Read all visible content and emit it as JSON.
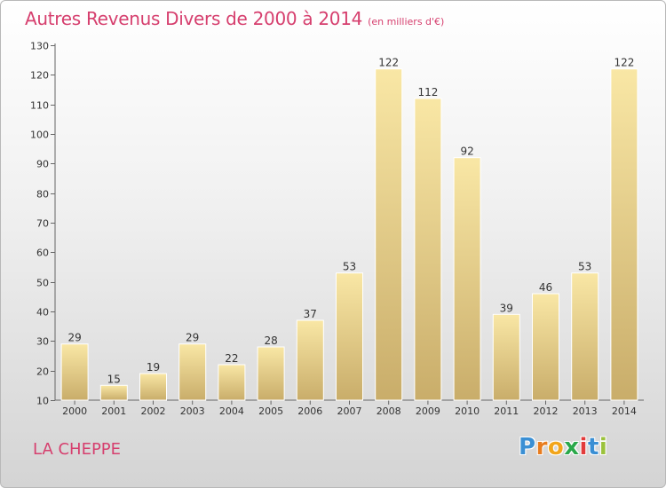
{
  "title": "Autres Revenus Divers de 2000 à 2014",
  "subtitle": "(en milliers d'€)",
  "place_name": "LA CHEPPE",
  "logo": {
    "letters": [
      "P",
      "r",
      "o",
      "x",
      "i",
      "t",
      "i"
    ],
    "colors": [
      "#3a8fd4",
      "#e87c1e",
      "#f2a51a",
      "#2aa84a",
      "#e23b3b",
      "#3a8fd4",
      "#9bc23c"
    ]
  },
  "colors": {
    "accent": "#d63f6e",
    "bar_light": "#f9e7a5",
    "bar_dark": "#c9ad6a"
  },
  "chart_data": {
    "type": "bar",
    "categories": [
      "2000",
      "2001",
      "2002",
      "2003",
      "2004",
      "2005",
      "2006",
      "2007",
      "2008",
      "2009",
      "2010",
      "2011",
      "2012",
      "2013",
      "2014"
    ],
    "values": [
      29,
      15,
      19,
      29,
      22,
      28,
      37,
      53,
      122,
      112,
      92,
      39,
      46,
      53,
      122
    ],
    "title": "Autres Revenus Divers de 2000 à 2014",
    "ylim": [
      10,
      130
    ],
    "yticks": [
      10,
      20,
      30,
      40,
      50,
      60,
      70,
      80,
      90,
      100,
      110,
      120,
      130
    ],
    "grid": false,
    "legend": "none"
  }
}
